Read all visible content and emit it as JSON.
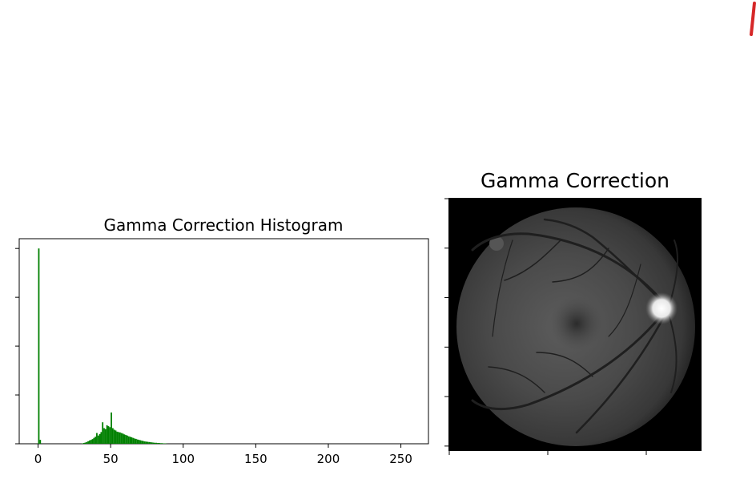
{
  "chart_data": [
    {
      "type": "bar",
      "title": "Gamma Correction Histogram",
      "xlabel": "",
      "ylabel": "",
      "xlim": [
        -13,
        269
      ],
      "x_ticks": [
        0,
        50,
        100,
        150,
        200,
        250
      ],
      "ylim": [
        0,
        1.05
      ],
      "y_ticks_labeled": false,
      "y_tick_values": [
        0,
        0.25,
        0.5,
        0.75,
        1.0
      ],
      "grid": false,
      "color": "#008000",
      "value_scale": "relative to tallest bin (count axis unlabeled)",
      "bins": [
        0,
        1,
        30,
        31,
        32,
        33,
        34,
        35,
        36,
        37,
        38,
        39,
        40,
        41,
        42,
        43,
        44,
        45,
        46,
        47,
        48,
        49,
        50,
        51,
        52,
        53,
        54,
        55,
        56,
        57,
        58,
        59,
        60,
        61,
        62,
        63,
        64,
        65,
        66,
        67,
        68,
        69,
        70,
        71,
        72,
        73,
        74,
        75,
        76,
        77,
        78,
        79,
        80,
        81,
        82,
        83,
        84,
        85,
        86,
        87,
        88
      ],
      "values": [
        1.0,
        0.02,
        0.002,
        0.004,
        0.006,
        0.009,
        0.013,
        0.017,
        0.02,
        0.024,
        0.03,
        0.036,
        0.055,
        0.042,
        0.05,
        0.06,
        0.11,
        0.08,
        0.075,
        0.095,
        0.09,
        0.085,
        0.16,
        0.08,
        0.072,
        0.068,
        0.062,
        0.06,
        0.058,
        0.055,
        0.052,
        0.048,
        0.045,
        0.042,
        0.038,
        0.036,
        0.033,
        0.03,
        0.027,
        0.025,
        0.022,
        0.02,
        0.018,
        0.016,
        0.014,
        0.012,
        0.011,
        0.01,
        0.009,
        0.008,
        0.007,
        0.006,
        0.005,
        0.005,
        0.004,
        0.004,
        0.003,
        0.003,
        0.002,
        0.002,
        0.001
      ]
    }
  ],
  "image_panel": {
    "title": "Gamma Correction",
    "content": "grayscale retinal fundus photograph",
    "background": "#000000",
    "x_ticks_unlabeled": 3,
    "y_ticks_unlabeled": 6
  },
  "colors": {
    "bar": "#008000",
    "corner_mark": "#d62728"
  }
}
